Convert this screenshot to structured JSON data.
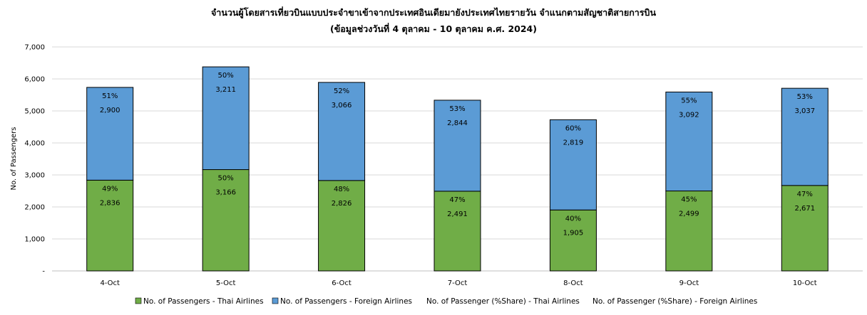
{
  "chart_data": {
    "type": "bar",
    "stacked": true,
    "title": "จำนวนผู้โดยสารเที่ยวบินแบบประจำขาเข้าจากประเทศอินเดียมายังประเทศไทยรายวัน  จำแนกตามสัญชาติสายการบิน",
    "subtitle": "(ข้อมูลช่วงวันที่ 4 ตุลาคม - 10 ตุลาคม ค.ศ. 2024)",
    "xlabel": "",
    "ylabel": "No. of Passengers",
    "ylim": [
      0,
      7000
    ],
    "yticks": [
      0,
      1000,
      2000,
      3000,
      4000,
      5000,
      6000,
      7000
    ],
    "ytick_labels": [
      "-",
      "1,000",
      "2,000",
      "3,000",
      "4,000",
      "5,000",
      "6,000",
      "7,000"
    ],
    "grid": true,
    "legend_position": "bottom",
    "categories": [
      "4-Oct",
      "5-Oct",
      "6-Oct",
      "7-Oct",
      "8-Oct",
      "9-Oct",
      "10-Oct"
    ],
    "series": [
      {
        "name": "No. of Passengers - Thai Airlines",
        "color": "#70AD47",
        "values": [
          2836,
          3166,
          2826,
          2491,
          1905,
          2499,
          2671
        ],
        "value_labels": [
          "2,836",
          "3,166",
          "2,826",
          "2,491",
          "1,905",
          "2,499",
          "2,671"
        ],
        "share_labels": [
          "49%",
          "50%",
          "48%",
          "47%",
          "40%",
          "45%",
          "47%"
        ]
      },
      {
        "name": "No. of Passengers - Foreign Airlines",
        "color": "#5B9BD5",
        "values": [
          2900,
          3211,
          3066,
          2844,
          2819,
          3092,
          3037
        ],
        "value_labels": [
          "2,900",
          "3,211",
          "3,066",
          "2,844",
          "2,819",
          "3,092",
          "3,037"
        ],
        "share_labels": [
          "51%",
          "50%",
          "52%",
          "53%",
          "60%",
          "55%",
          "53%"
        ]
      }
    ],
    "extra_legend": [
      "No. of Passenger (%Share) - Thai Airlines",
      "No. of Passenger (%Share) - Foreign Airlines"
    ]
  }
}
